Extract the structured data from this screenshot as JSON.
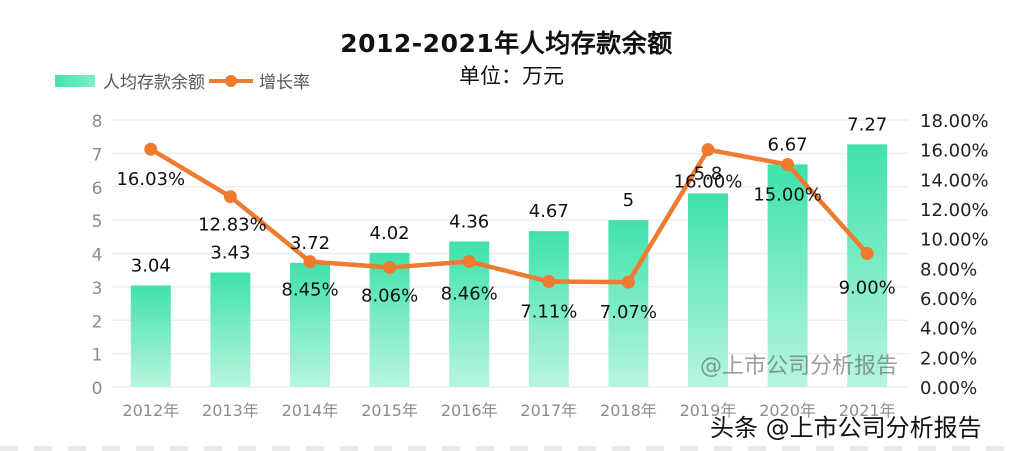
{
  "header": {
    "title": "2012-2021年人均存款余额",
    "subtitle": "单位：万元"
  },
  "legend": {
    "bar_label": "人均存款余额",
    "line_label": "增长率"
  },
  "watermark": "@上市公司分析报告",
  "footer_mark": "头条 @上市公司分析报告",
  "colors": {
    "bar_top": "#3fe2a9",
    "bar_bottom": "#b5f5dd",
    "line": "#ee7b30",
    "grid": "#ececec",
    "axis_text": "#8c8c8c",
    "label_text": "#111111"
  },
  "chart_data": {
    "type": "bar+line",
    "title": "2012-2021年人均存款余额",
    "subtitle": "单位：万元",
    "categories": [
      "2012年",
      "2013年",
      "2014年",
      "2015年",
      "2016年",
      "2017年",
      "2018年",
      "2019年",
      "2020年",
      "2021年"
    ],
    "series": [
      {
        "name": "人均存款余额",
        "type": "bar",
        "axis": "left",
        "values": [
          3.04,
          3.43,
          3.72,
          4.02,
          4.36,
          4.67,
          5,
          5.8,
          6.67,
          7.27
        ],
        "labels": [
          "3.04",
          "3.43",
          "3.72",
          "4.02",
          "4.36",
          "4.67",
          "5",
          "5.8",
          "6.67",
          "7.27"
        ]
      },
      {
        "name": "增长率",
        "type": "line",
        "axis": "right",
        "values": [
          16.03,
          12.83,
          8.45,
          8.06,
          8.46,
          7.11,
          7.07,
          16.0,
          15.0,
          9.0
        ],
        "labels": [
          "16.03%",
          "12.83%",
          "8.45%",
          "8.06%",
          "8.46%",
          "7.11%",
          "7.07%",
          "16.00%",
          "15.00%",
          "9.00%"
        ]
      }
    ],
    "left_axis": {
      "min": 0,
      "max": 8,
      "ticks": [
        "0",
        "1",
        "2",
        "3",
        "4",
        "5",
        "6",
        "7",
        "8"
      ]
    },
    "right_axis": {
      "min": 0,
      "max": 18,
      "ticks": [
        "0.00%",
        "2.00%",
        "4.00%",
        "6.00%",
        "8.00%",
        "10.00%",
        "12.00%",
        "14.00%",
        "16.00%",
        "18.00%"
      ]
    },
    "grid": true,
    "legend_position": "top-left"
  }
}
